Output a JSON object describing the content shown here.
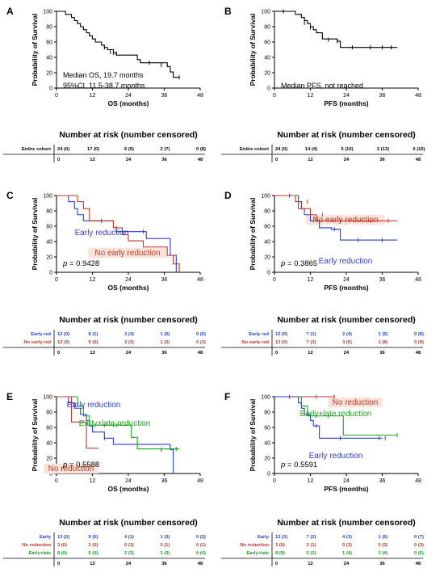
{
  "colors": {
    "black": "#000000",
    "blue": "#2a3fd6",
    "red": "#c0392b",
    "green": "#1aa31a",
    "orange_bg": "#fbe3d9"
  },
  "chart_data": [
    {
      "type": "line",
      "panel": "A",
      "xlabel": "OS (months)",
      "ylabel": "Probability of Survival",
      "xlim": [
        0,
        48
      ],
      "ylim": [
        0,
        100
      ],
      "xticks": [
        "0",
        "12",
        "24",
        "36",
        "48"
      ],
      "yticks": [
        "0",
        "20",
        "40",
        "60",
        "80",
        "100"
      ],
      "annotation": [
        "Median OS, 19.7 months",
        "95%CI, 11.5-38.7 months"
      ],
      "series": [
        {
          "color": "black",
          "x": [
            0,
            3,
            5,
            6,
            7,
            8,
            9,
            10,
            11,
            12,
            13,
            15,
            16,
            17,
            19,
            20,
            27,
            28,
            37,
            38,
            39,
            41
          ],
          "y": [
            100,
            96,
            92,
            88,
            84,
            80,
            76,
            72,
            68,
            64,
            60,
            56,
            53,
            50,
            46,
            43,
            37,
            33,
            28,
            21,
            14,
            14
          ],
          "censors": [
            [
              16,
              53
            ],
            [
              18,
              47
            ],
            [
              19,
              46
            ],
            [
              20,
              45
            ],
            [
              31,
              33
            ],
            [
              35,
              30
            ],
            [
              41,
              14
            ]
          ]
        }
      ],
      "risk_table": {
        "title": "Number at risk (number censored)",
        "timepoints": [
          "0",
          "12",
          "24",
          "36",
          "48"
        ],
        "rows": [
          {
            "label": "Entire cohort",
            "color": "black",
            "cells": [
              "24 (0)",
              "17 (0)",
              "6 (5)",
              "2 (7)",
              "0 (8)"
            ]
          }
        ]
      }
    },
    {
      "type": "line",
      "panel": "B",
      "xlabel": "PFS (months)",
      "ylabel": "Probability of Survival",
      "xlim": [
        0,
        48
      ],
      "ylim": [
        0,
        100
      ],
      "xticks": [
        "0",
        "12",
        "24",
        "36",
        "48"
      ],
      "yticks": [
        "0",
        "20",
        "40",
        "60",
        "80",
        "100"
      ],
      "annotation": [
        "Median PFS, not reached"
      ],
      "series": [
        {
          "color": "black",
          "x": [
            0,
            7,
            9,
            10,
            11,
            12,
            13,
            14,
            16,
            21,
            22,
            41
          ],
          "y": [
            100,
            96,
            92,
            88,
            84,
            80,
            76,
            72,
            64,
            61,
            53,
            53
          ],
          "censors": [
            [
              3,
              100
            ],
            [
              10,
              85
            ],
            [
              12,
              79
            ],
            [
              18,
              63
            ],
            [
              21,
              61
            ],
            [
              26,
              53
            ],
            [
              32,
              53
            ],
            [
              36,
              53
            ],
            [
              39,
              53
            ]
          ]
        }
      ],
      "risk_table": {
        "title": "Number at risk (number censored)",
        "timepoints": [
          "0",
          "12",
          "24",
          "36",
          "48"
        ],
        "rows": [
          {
            "label": "Entire cohort",
            "color": "black",
            "cells": [
              "24 (0)",
              "14 (4)",
              "5 (10)",
              "2 (13)",
              "0 (15)"
            ]
          }
        ]
      }
    },
    {
      "type": "line",
      "panel": "C",
      "xlabel": "OS (months)",
      "ylabel": "Probability of Survival",
      "xlim": [
        0,
        48
      ],
      "ylim": [
        0,
        100
      ],
      "xticks": [
        "0",
        "12",
        "24",
        "36",
        "48"
      ],
      "yticks": [
        "0",
        "20",
        "40",
        "60",
        "80",
        "100"
      ],
      "pvalue": "0.9428",
      "series": [
        {
          "name": "Early reduction",
          "color": "blue",
          "x": [
            0,
            4,
            6,
            7,
            9,
            11,
            14,
            19,
            20,
            30,
            38,
            40
          ],
          "y": [
            100,
            92,
            83,
            75,
            67,
            67,
            67,
            58,
            53,
            44,
            22,
            0
          ],
          "censors": [
            [
              15,
              67
            ],
            [
              20,
              53
            ],
            [
              22,
              53
            ],
            [
              29,
              53
            ]
          ]
        },
        {
          "name": "No early reduction",
          "color": "red",
          "x": [
            0,
            7,
            9,
            11,
            16,
            19,
            22,
            24,
            29,
            37,
            39,
            41
          ],
          "y": [
            100,
            92,
            83,
            67,
            67,
            58,
            49,
            41,
            33,
            22,
            11,
            0
          ],
          "censors": [
            [
              20,
              58
            ]
          ]
        }
      ],
      "risk_table": {
        "title": "Number at risk (number censored)",
        "timepoints": [
          "0",
          "12",
          "24",
          "36",
          "48"
        ],
        "rows": [
          {
            "label": "Early red",
            "color": "blue",
            "cells": [
              "12 (0)",
              "8 (1)",
              "3 (4)",
              "1 (5)",
              "0 (5)"
            ]
          },
          {
            "label": "No early red",
            "color": "red",
            "cells": [
              "12 (0)",
              "9 (0)",
              "3 (3)",
              "1 (3)",
              "0 (3)"
            ]
          }
        ]
      }
    },
    {
      "type": "line",
      "panel": "D",
      "xlabel": "PFS (months)",
      "ylabel": "Probability of Survival",
      "xlim": [
        0,
        48
      ],
      "ylim": [
        0,
        100
      ],
      "xticks": [
        "0",
        "12",
        "24",
        "36",
        "48"
      ],
      "yticks": [
        "0",
        "20",
        "40",
        "60",
        "80",
        "100"
      ],
      "pvalue": "0.3865",
      "series": [
        {
          "name": "Early reduction",
          "color": "blue",
          "x": [
            0,
            8,
            9,
            10,
            12,
            14,
            15,
            16,
            19,
            21,
            22,
            41
          ],
          "y": [
            100,
            92,
            83,
            75,
            67,
            67,
            58,
            58,
            56,
            56,
            42,
            42
          ],
          "censors": [
            [
              5,
              100
            ],
            [
              20,
              56
            ],
            [
              28,
              42
            ],
            [
              36,
              42
            ]
          ]
        },
        {
          "name": "No early reduction",
          "color": "red",
          "x": [
            0,
            7,
            8,
            12,
            14,
            18,
            22,
            41
          ],
          "y": [
            100,
            92,
            83,
            75,
            67,
            67,
            67,
            67
          ],
          "censors": [
            [
              11,
              92
            ],
            [
              16,
              75
            ],
            [
              22,
              67
            ],
            [
              32,
              67
            ],
            [
              38,
              67
            ]
          ]
        }
      ],
      "risk_table": {
        "title": "Number at risk (number censored)",
        "timepoints": [
          "0",
          "12",
          "24",
          "36",
          "48"
        ],
        "rows": [
          {
            "label": "Early red",
            "color": "blue",
            "cells": [
              "12 (0)",
              "7 (1)",
              "2 (4)",
              "1 (5)",
              "0 (6)"
            ]
          },
          {
            "label": "No early red",
            "color": "red",
            "cells": [
              "12 (0)",
              "7 (3)",
              "3 (6)",
              "1 (8)",
              "0 (9)"
            ]
          }
        ]
      }
    },
    {
      "type": "line",
      "panel": "E",
      "xlabel": "OS (months)",
      "ylabel": "Probability of Survival",
      "xlim": [
        0,
        48
      ],
      "ylim": [
        0,
        100
      ],
      "xticks": [
        "0",
        "12",
        "24",
        "36",
        "48"
      ],
      "yticks": [
        "0",
        "20",
        "40",
        "60",
        "80",
        "100"
      ],
      "pvalue": "0.5588",
      "series": [
        {
          "name": "Early reduction",
          "color": "blue",
          "x": [
            0,
            4,
            6,
            8,
            10,
            11,
            12,
            16,
            19,
            20,
            38,
            39
          ],
          "y": [
            100,
            92,
            85,
            77,
            69,
            62,
            54,
            46,
            38,
            38,
            31,
            0
          ],
          "censors": [
            [
              16,
              46
            ],
            [
              35,
              31
            ]
          ]
        },
        {
          "name": "Early+late reduction",
          "color": "green",
          "x": [
            0,
            7,
            9,
            11,
            12,
            14,
            25,
            27,
            29,
            41
          ],
          "y": [
            100,
            88,
            75,
            63,
            63,
            63,
            47,
            32,
            32,
            32
          ],
          "censors": [
            [
              16,
              63
            ],
            [
              19,
              63
            ],
            [
              20,
              63
            ],
            [
              40,
              32
            ]
          ]
        },
        {
          "name": "No reduction",
          "color": "red",
          "x": [
            0,
            5,
            10,
            14
          ],
          "y": [
            100,
            67,
            33,
            33
          ],
          "censors": []
        }
      ],
      "risk_table": {
        "title": "Number at risk (number censored)",
        "timepoints": [
          "0",
          "12",
          "24",
          "36",
          "48"
        ],
        "rows": [
          {
            "label": "Early",
            "color": "blue",
            "cells": [
              "13 (0)",
              "9 (0)",
              "4 (1)",
              "1 (3)",
              "0 (3)"
            ]
          },
          {
            "label": "No reduction",
            "color": "red",
            "cells": [
              "3 (0)",
              "2 (0)",
              "0 (1)",
              "0 (1)",
              "0 (1)"
            ]
          },
          {
            "label": "Early+late",
            "color": "green",
            "cells": [
              "8 (0)",
              "6 (0)",
              "2 (3)",
              "1 (3)",
              "0 (4)"
            ]
          }
        ]
      }
    },
    {
      "type": "line",
      "panel": "F",
      "xlabel": "PFS (months)",
      "ylabel": "Probability of Survival",
      "xlim": [
        0,
        48
      ],
      "ylim": [
        0,
        100
      ],
      "xticks": [
        "0",
        "12",
        "24",
        "36",
        "48"
      ],
      "yticks": [
        "0",
        "20",
        "40",
        "60",
        "80",
        "100"
      ],
      "pvalue": "0.5591",
      "series": [
        {
          "name": "No reduction",
          "color": "red",
          "x": [
            0,
            20
          ],
          "y": [
            100,
            100
          ],
          "censors": [
            [
              5,
              100
            ],
            [
              14,
              100
            ],
            [
              20,
              100
            ]
          ]
        },
        {
          "name": "Early+late reduction",
          "color": "green",
          "x": [
            0,
            9,
            11,
            13,
            21,
            23,
            41
          ],
          "y": [
            100,
            88,
            75,
            75,
            75,
            50,
            50
          ],
          "censors": [
            [
              18,
              75
            ],
            [
              41,
              50
            ]
          ]
        },
        {
          "name": "Early reduction",
          "color": "blue",
          "x": [
            0,
            8,
            9,
            10,
            12,
            13,
            15,
            36
          ],
          "y": [
            100,
            92,
            85,
            77,
            69,
            62,
            46,
            46
          ],
          "censors": [
            [
              14,
              62
            ],
            [
              22,
              46
            ],
            [
              35,
              46
            ],
            [
              37,
              46
            ]
          ]
        }
      ],
      "risk_table": {
        "title": "Number at risk (number censored)",
        "timepoints": [
          "0",
          "12",
          "24",
          "36",
          "48"
        ],
        "rows": [
          {
            "label": "Early",
            "color": "blue",
            "cells": [
              "13 (0)",
              "7 (2)",
              "4 (3)",
              "1 (6)",
              "0 (7)"
            ]
          },
          {
            "label": "No reduction",
            "color": "red",
            "cells": [
              "3 (0)",
              "2 (1)",
              "0 (3)",
              "0 (3)",
              "0 (3)"
            ]
          },
          {
            "label": "Early+late",
            "color": "green",
            "cells": [
              "8 (0)",
              "5 (1)",
              "1 (4)",
              "1 (4)",
              "0 (5)"
            ]
          }
        ]
      }
    }
  ]
}
